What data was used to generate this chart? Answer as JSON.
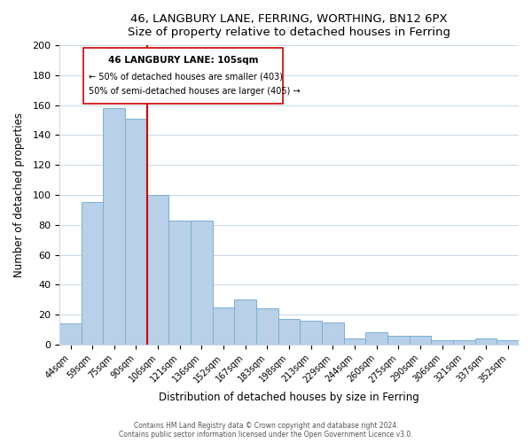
{
  "title1": "46, LANGBURY LANE, FERRING, WORTHING, BN12 6PX",
  "title2": "Size of property relative to detached houses in Ferring",
  "xlabel": "Distribution of detached houses by size in Ferring",
  "ylabel": "Number of detached properties",
  "categories": [
    "44sqm",
    "59sqm",
    "75sqm",
    "90sqm",
    "106sqm",
    "121sqm",
    "136sqm",
    "152sqm",
    "167sqm",
    "183sqm",
    "198sqm",
    "213sqm",
    "229sqm",
    "244sqm",
    "260sqm",
    "275sqm",
    "290sqm",
    "306sqm",
    "321sqm",
    "337sqm",
    "352sqm"
  ],
  "values": [
    14,
    95,
    158,
    151,
    100,
    83,
    83,
    25,
    30,
    24,
    17,
    16,
    15,
    4,
    8,
    6,
    6,
    3,
    3,
    4,
    3
  ],
  "bar_color": "#b8d0e8",
  "bar_edge_color": "#7aafd4",
  "vline_color": "#cc0000",
  "vline_x": 3.5,
  "annotation_title": "46 LANGBURY LANE: 105sqm",
  "annotation_line1": "← 50% of detached houses are smaller (403)",
  "annotation_line2": "50% of semi-detached houses are larger (405) →",
  "box_edge_color": "#cc0000",
  "ylim": [
    0,
    200
  ],
  "yticks": [
    0,
    20,
    40,
    60,
    80,
    100,
    120,
    140,
    160,
    180,
    200
  ],
  "footer1": "Contains HM Land Registry data © Crown copyright and database right 2024.",
  "footer2": "Contains public sector information licensed under the Open Government Licence v3.0."
}
